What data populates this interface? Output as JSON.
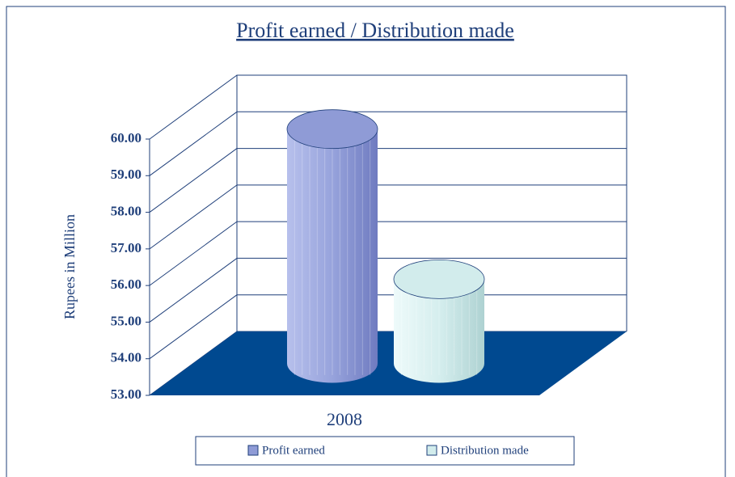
{
  "chart_data": {
    "type": "cylinder3d",
    "title": "Profit earned / Distribution made",
    "y_label": "Rupees in Million",
    "categories": [
      "2008"
    ],
    "series": [
      {
        "name": "Profit earned",
        "color": "#8f9bd6",
        "values": [
          59.4
        ]
      },
      {
        "name": "Distribution made",
        "color": "#d2ecec",
        "values": [
          55.3
        ]
      }
    ],
    "ylim": [
      53,
      60
    ],
    "yticks": [
      {
        "value": 53,
        "label": "53.00"
      },
      {
        "value": 54,
        "label": "54.00"
      },
      {
        "value": 55,
        "label": "55.00"
      },
      {
        "value": 56,
        "label": "56.00"
      },
      {
        "value": 57,
        "label": "57.00"
      },
      {
        "value": 58,
        "label": "58.00"
      },
      {
        "value": 59,
        "label": "59.00"
      },
      {
        "value": 60,
        "label": "60.00"
      }
    ],
    "grid": true
  }
}
